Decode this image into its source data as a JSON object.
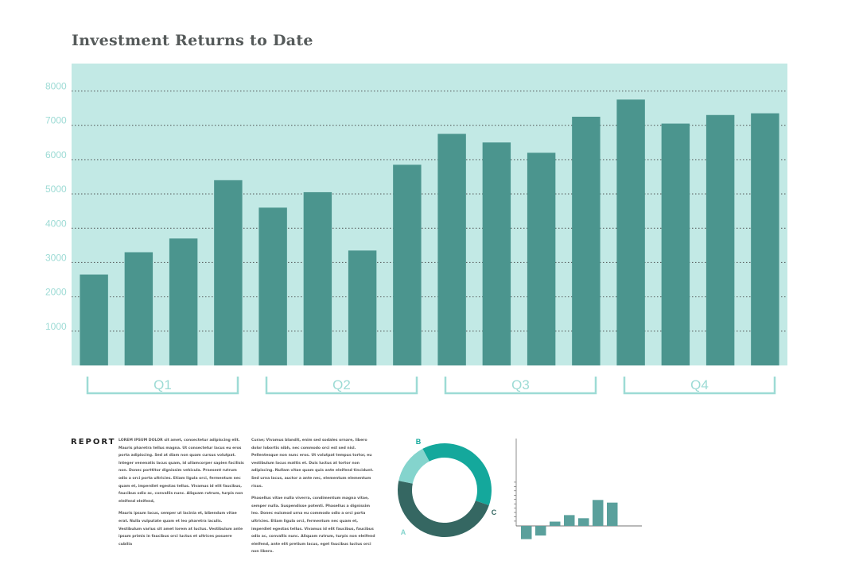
{
  "colors": {
    "background": "#ffffff",
    "plot_bg": "#c2e9e5",
    "bar": "#4b958e",
    "grid": "#5c6363",
    "ytick_text": "#9ddbd5",
    "bracket": "#9ddbd5",
    "donut_b": "#14a89c",
    "donut_c": "#356762",
    "donut_a": "#84d4cd",
    "mini_bar": "#5aa09c"
  },
  "main": {
    "report_label": "REPORT",
    "body_col1_p1": "LOREM IPSUM DOLOR sit amet, consectetur adipiscing elit. Mauris pharetra tellus magna. Ut consectetur lacus eu eros porta adipiscing. Sed at diam non quam cursus volutpat. Integer venenatis lacus quam, id ullamcorper sapien facilisis non. Donec porttitor dignissim vehicula. Praesent rutrum odio a orci porta ultricies. Etiam ligula orci, fermentum nec quam et, imperdiet egestas tellus. Vivamus id elit faucibus, faucibus odio ac, convallis nunc. Aliquam rutrum, turpis non eleifend eleifend,",
    "body_col1_p2": "Mauris ipsum lacus, semper ut lacinia et, bibendum vitae erat. Nulla vulputate quam et leo pharetra iaculis. Vestibulum varius sit amet lorem at luctus. Vestibulum ante ipsum primis in faucibus orci luctus et ultrices posuere cubilia",
    "body_col2_p1": "Curae; Vivamus blandit, enim sed sodales ornare, libero dolor lobortis nibh, nec commodo orci est sed nisl. Pellentesque non nunc eros. Ut volutpat tempus tortor, eu vestibulum lacus mattis et. Duis luctus at tortor non adipiscing. Nullam vitae quam quis ante eleifend tincidunt. Sed urna lacus, auctor a ante nec, elementum elementum risus.",
    "body_col2_p2": "Phasellus vitae nulla viverra, condimentum magna vitae, semper nulla. Suspendisse potenti. Phasellus a dignissim leo. Donec euismod urna eu commodo odio a orci porta ultricies. Etiam ligula orci, fermentum nec quam et, imperdiet egestas tellus. Vivamus id elit faucibus, faucibus odio ac, convallis nunc. Aliquam rutrum, turpis non eleifend eleifend, ante elit pretium lacus, eget faucibus luctus orci non libero."
  },
  "chart_data": [
    {
      "type": "bar",
      "title": "Investment Returns to Date",
      "ylim": [
        0,
        8800
      ],
      "yticks": [
        1000,
        2000,
        3000,
        4000,
        5000,
        6000,
        7000,
        8000
      ],
      "grid": true,
      "groups": [
        {
          "label": "Q1",
          "values": [
            2650,
            3300,
            3700,
            5400
          ]
        },
        {
          "label": "Q2",
          "values": [
            4600,
            5050,
            3350,
            5850
          ]
        },
        {
          "label": "Q3",
          "values": [
            6750,
            6500,
            6200,
            7250
          ]
        },
        {
          "label": "Q4",
          "values": [
            7750,
            7050,
            7300,
            7350
          ]
        }
      ]
    },
    {
      "type": "pie",
      "slices": [
        {
          "label": "B",
          "value": 38
        },
        {
          "label": "C",
          "value": 48
        },
        {
          "label": "A",
          "value": 14
        }
      ]
    },
    {
      "type": "bar",
      "values": [
        -55,
        -40,
        18,
        45,
        32,
        108,
        97
      ],
      "ylim": [
        -60,
        200
      ]
    }
  ]
}
